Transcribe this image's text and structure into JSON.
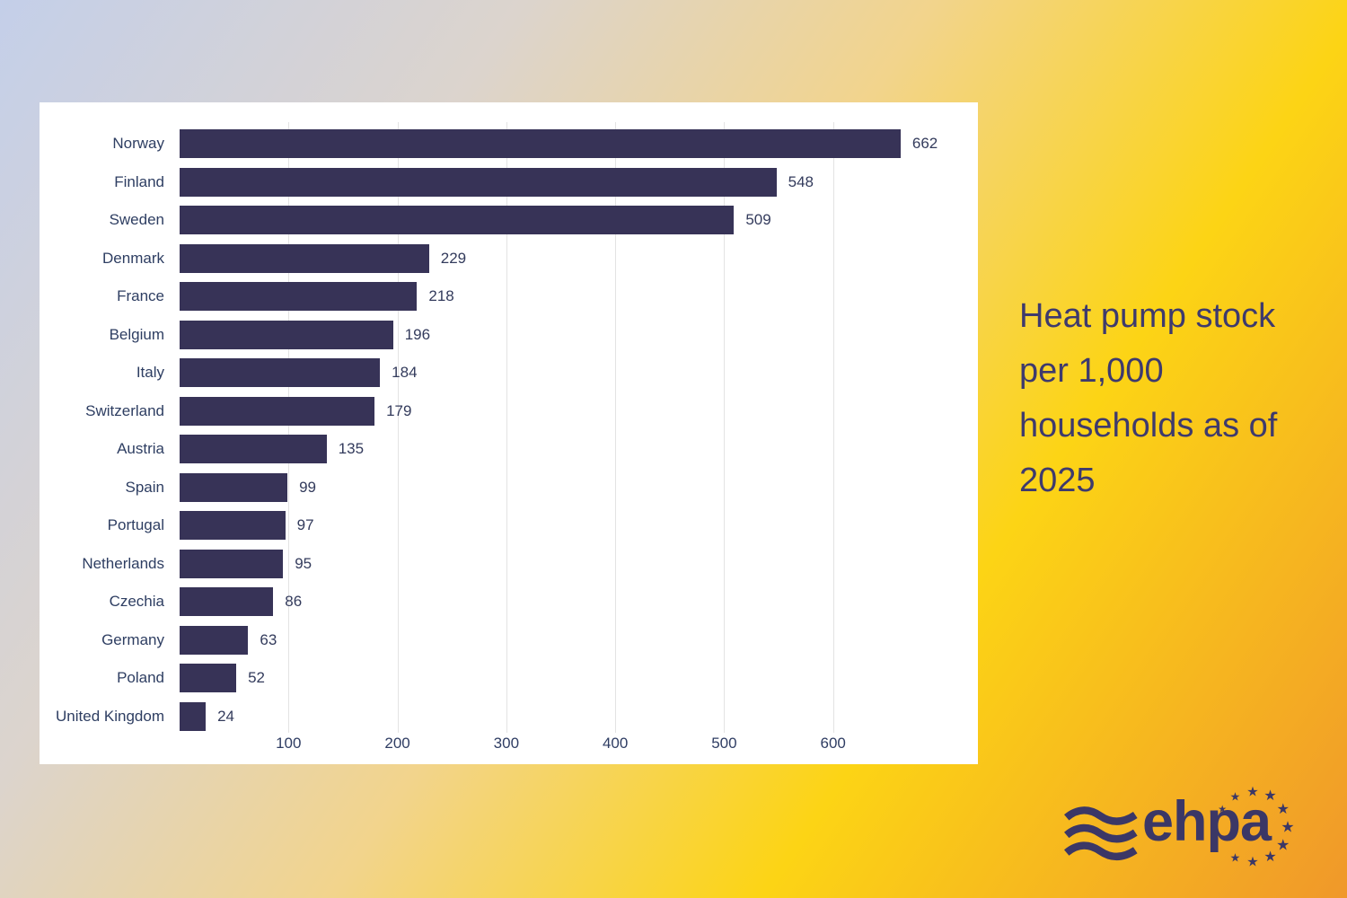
{
  "title": {
    "text": "Heat pump stock per 1,000 households as of 2025",
    "color": "#3e3a6d"
  },
  "chart_data": {
    "type": "bar",
    "orientation": "horizontal",
    "title": "Heat pump stock per 1,000 households as of 2025",
    "xlabel": "",
    "ylabel": "",
    "categories": [
      "Norway",
      "Finland",
      "Sweden",
      "Denmark",
      "France",
      "Belgium",
      "Italy",
      "Switzerland",
      "Austria",
      "Spain",
      "Portugal",
      "Netherlands",
      "Czechia",
      "Germany",
      "Poland",
      "United Kingdom"
    ],
    "values": [
      662,
      548,
      509,
      229,
      218,
      196,
      184,
      179,
      135,
      99,
      97,
      95,
      86,
      63,
      52,
      24
    ],
    "data_labels": [
      "662",
      "548",
      "509",
      "229",
      "218",
      "196",
      "184",
      "179",
      "135",
      "99",
      "97",
      "95",
      "86",
      "63",
      "52",
      "24"
    ],
    "x_ticks": [
      100,
      200,
      300,
      400,
      500,
      600
    ],
    "x_tick_labels": [
      "100",
      "200",
      "300",
      "400",
      "500",
      "600"
    ],
    "xlim": [
      0,
      733
    ],
    "grid": true,
    "gridline_color": "#e3e3e3",
    "bar_color": "#373357",
    "label_color": "#2e3e62",
    "value_color": "#333b5c",
    "panel_bg": "#ffffff",
    "legend": "none"
  },
  "background": {
    "gradient_colors": [
      "#c4cfe9",
      "#dcd4cd",
      "#f2d48c",
      "#fcd415",
      "#f0982a"
    ]
  },
  "logo": {
    "text": "ehpa",
    "waves_icon": "triple-wave-icon",
    "stars_count": 10,
    "color": "#3b3766"
  }
}
